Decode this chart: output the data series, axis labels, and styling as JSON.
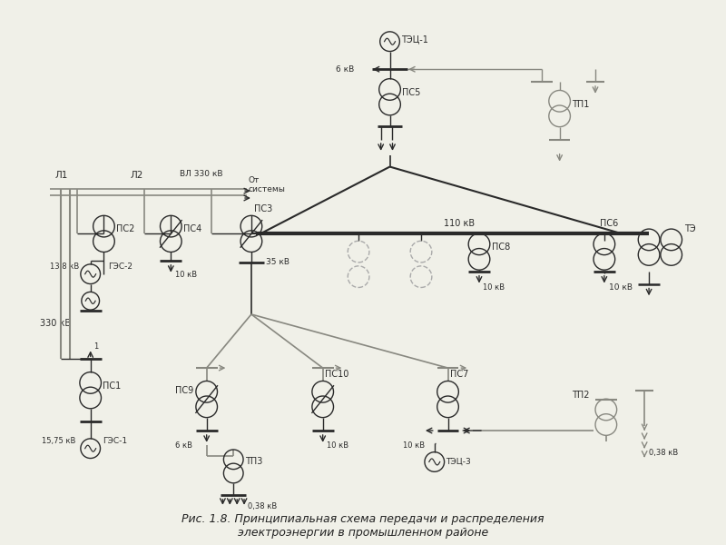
{
  "title": "Рис. 1.8. Принципиальная схема передачи и распределения\nэлектроэнергии в промышленном районе",
  "bg_color": "#f0f0e8",
  "line_color": "#2a2a2a",
  "gray_color": "#888880",
  "fig_width": 8.0,
  "fig_height": 6.0,
  "dpi": 100,
  "xlim": [
    0,
    800
  ],
  "ylim": [
    0,
    600
  ]
}
